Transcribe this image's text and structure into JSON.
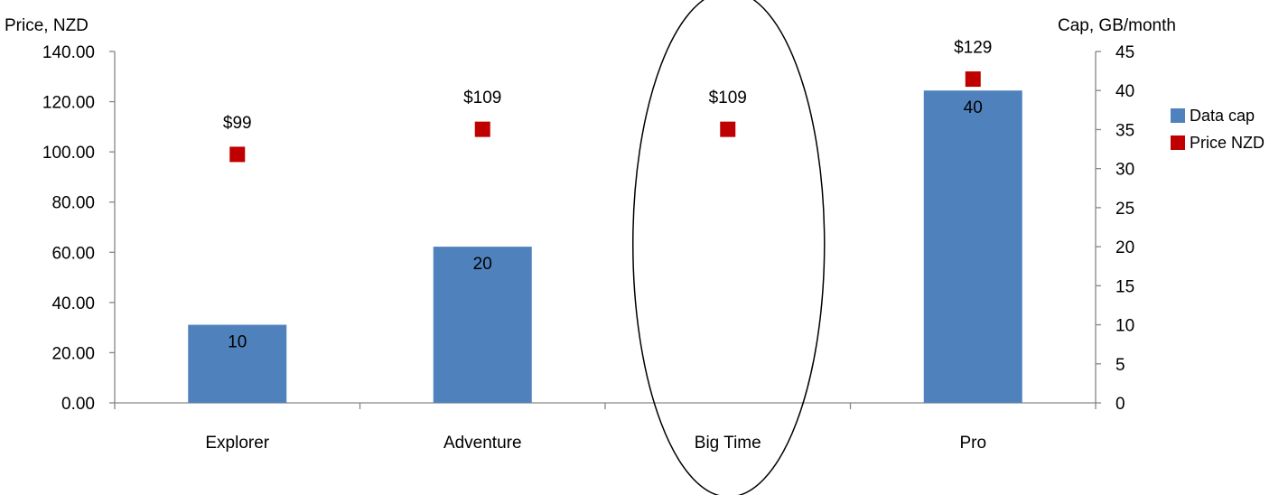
{
  "chart_data": {
    "type": "bar",
    "categories": [
      "Explorer",
      "Adventure",
      "Big Time",
      "Pro"
    ],
    "series": [
      {
        "name": "Data cap",
        "kind": "bar",
        "axis": "right",
        "values": [
          10,
          20,
          null,
          40
        ],
        "data_labels": [
          "10",
          "20",
          "",
          "40"
        ]
      },
      {
        "name": "Price NZD",
        "kind": "marker",
        "axis": "left",
        "values": [
          99,
          109,
          109,
          129
        ],
        "data_labels": [
          "$99",
          "$109",
          "$109",
          "$129"
        ]
      }
    ],
    "left_axis": {
      "title": "Price, NZD",
      "range": [
        0,
        140
      ],
      "ticks": [
        "0.00",
        "20.00",
        "40.00",
        "60.00",
        "80.00",
        "100.00",
        "120.00",
        "140.00"
      ]
    },
    "right_axis": {
      "title": "Cap, GB/month",
      "range": [
        0,
        45
      ],
      "ticks": [
        "0",
        "5",
        "10",
        "15",
        "20",
        "25",
        "30",
        "35",
        "40",
        "45"
      ]
    },
    "grid": false,
    "legend_position": "right",
    "highlight": {
      "shape": "ellipse",
      "category": "Big Time"
    },
    "colors": {
      "Data cap": "#4f81bd",
      "Price NZD": "#c00000",
      "axis": "#868686"
    }
  }
}
